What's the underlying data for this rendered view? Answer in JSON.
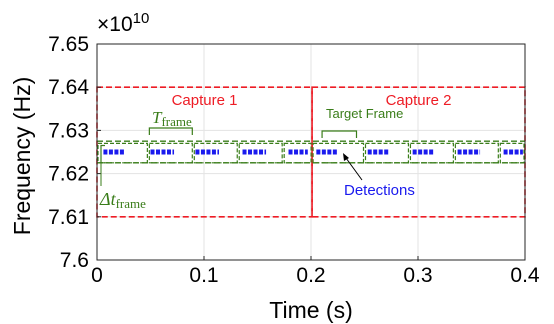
{
  "chart_data": {
    "type": "scatter",
    "xlabel": "Time (s)",
    "ylabel": "Frequency (Hz)",
    "xlim": [
      0,
      0.4
    ],
    "ylim": [
      7.6,
      7.65
    ],
    "y_exponent_label": "×10",
    "y_exponent_power": "10",
    "xticks": [
      "0",
      "0.1",
      "0.2",
      "0.3",
      "0.4"
    ],
    "yticks": [
      "7.6",
      "7.61",
      "7.62",
      "7.63",
      "7.64",
      "7.65"
    ],
    "grid": true,
    "captures": [
      {
        "label": "Capture 1",
        "x0": 0.0,
        "x1": 0.201,
        "y0": 7.61,
        "y1": 7.64
      },
      {
        "label": "Capture 2",
        "x0": 0.201,
        "x1": 0.4,
        "y0": 7.61,
        "y1": 7.64
      }
    ],
    "target_band": {
      "y0": 7.6225,
      "y1": 7.6275
    },
    "target_frames": [
      [
        0.0,
        0.048
      ],
      [
        0.048,
        0.09
      ],
      [
        0.09,
        0.132
      ],
      [
        0.132,
        0.174
      ],
      [
        0.174,
        0.201
      ],
      [
        0.201,
        0.25
      ],
      [
        0.25,
        0.292
      ],
      [
        0.292,
        0.334
      ],
      [
        0.334,
        0.376
      ],
      [
        0.376,
        0.4
      ]
    ],
    "detections": [
      {
        "x0": 0.006,
        "x1": 0.026,
        "y": 7.625
      },
      {
        "x0": 0.05,
        "x1": 0.072,
        "y": 7.625
      },
      {
        "x0": 0.092,
        "x1": 0.114,
        "y": 7.625
      },
      {
        "x0": 0.136,
        "x1": 0.158,
        "y": 7.625
      },
      {
        "x0": 0.179,
        "x1": 0.197,
        "y": 7.625
      },
      {
        "x0": 0.205,
        "x1": 0.225,
        "y": 7.625
      },
      {
        "x0": 0.253,
        "x1": 0.273,
        "y": 7.625
      },
      {
        "x0": 0.295,
        "x1": 0.315,
        "y": 7.625
      },
      {
        "x0": 0.337,
        "x1": 0.358,
        "y": 7.625
      },
      {
        "x0": 0.38,
        "x1": 0.398,
        "y": 7.625
      }
    ],
    "annotations": {
      "t_frame_symbol": "T",
      "t_frame_subscript": "frame",
      "dt_frame_symbol": "Δt",
      "dt_frame_subscript": "frame",
      "target_frame": "Target Frame",
      "detections": "Detections"
    },
    "colors": {
      "capture": "#ee1c25",
      "target": "#3a7d1a",
      "detection": "#1a1aee",
      "grid": "#e3e3e3"
    }
  }
}
